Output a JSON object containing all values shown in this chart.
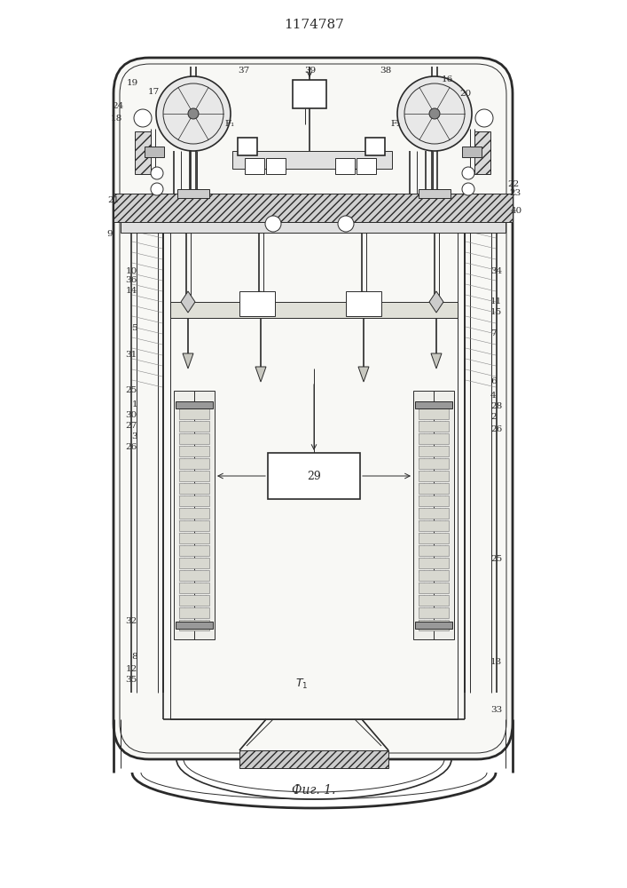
{
  "title": "1174787",
  "caption": "Фиг. 1.",
  "bg_color": "#ffffff",
  "line_color": "#2a2a2a",
  "fig_width": 7.07,
  "fig_height": 10.0,
  "dpi": 100
}
